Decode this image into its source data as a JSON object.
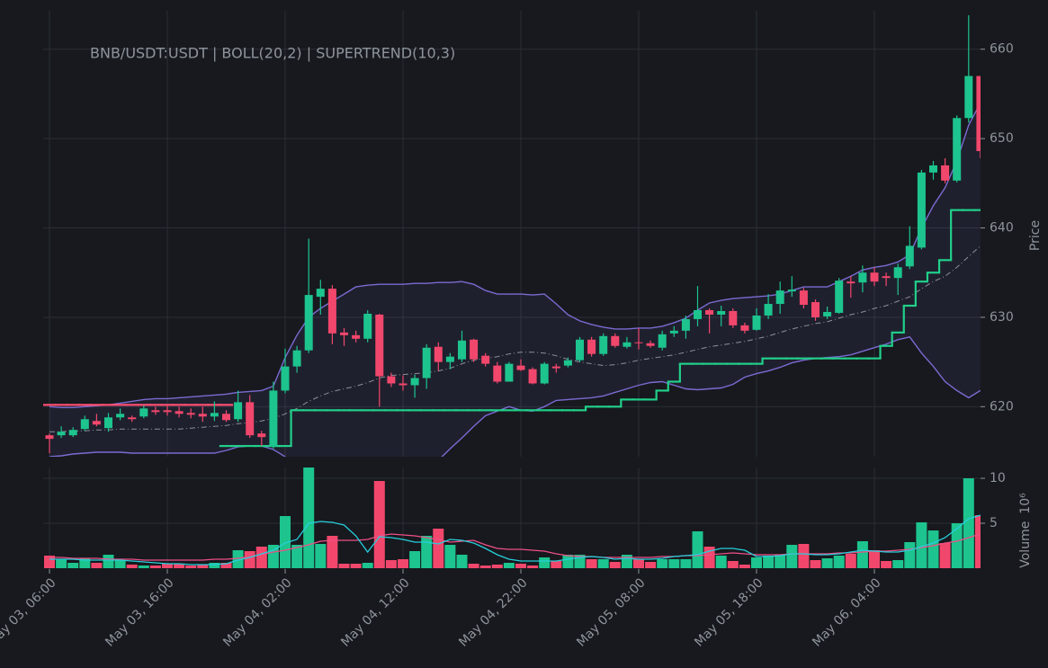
{
  "chart_data": {
    "type": "candlestick",
    "title": "BNB/USDT:USDT | BOLL(20,2) | SUPERTREND(10,3)",
    "y_label": "Price",
    "grid": true,
    "colors": {
      "up": "#1dc48e",
      "down": "#f2476c"
    },
    "categories": [
      "May 03, 06:00",
      null,
      null,
      null,
      null,
      null,
      null,
      null,
      null,
      null,
      "May 03, 16:00",
      null,
      null,
      null,
      null,
      null,
      null,
      null,
      null,
      null,
      "May 04, 02:00",
      null,
      null,
      null,
      null,
      null,
      null,
      null,
      null,
      null,
      "May 04, 12:00",
      null,
      null,
      null,
      null,
      null,
      null,
      null,
      null,
      null,
      "May 04, 22:00",
      null,
      null,
      null,
      null,
      null,
      null,
      null,
      null,
      null,
      "May 05, 08:00",
      null,
      null,
      null,
      null,
      null,
      null,
      null,
      null,
      null,
      "May 05, 18:00",
      null,
      null,
      null,
      null,
      null,
      null,
      null,
      null,
      null,
      "May 06, 04:00",
      null,
      null,
      null,
      null,
      null,
      null,
      null,
      null,
      null
    ],
    "open": [
      616.8,
      616.8,
      616.8,
      617.5,
      618.4,
      617.6,
      618.8,
      618.8,
      618.9,
      619.6,
      619.6,
      619.5,
      619.3,
      619.2,
      618.9,
      619.2,
      618.6,
      620.5,
      617.0,
      615.5,
      621.8,
      624.5,
      626.3,
      632.3,
      633.2,
      628.3,
      628.0,
      627.6,
      630.3,
      623.4,
      622.6,
      622.4,
      623.2,
      626.7,
      625.0,
      625.3,
      627.5,
      625.7,
      624.6,
      622.8,
      624.6,
      624.2,
      622.6,
      624.5,
      624.6,
      625.2,
      627.5,
      625.9,
      627.9,
      626.7,
      627.2,
      627.1,
      626.6,
      628.2,
      628.5,
      629.8,
      630.8,
      630.3,
      630.7,
      629.1,
      628.6,
      630.2,
      631.5,
      632.9,
      633.0,
      631.7,
      630.1,
      630.5,
      634.0,
      633.9,
      635.0,
      634.6,
      634.4,
      635.7,
      637.8,
      646.2,
      647.0,
      645.3,
      652.3,
      657.0
    ],
    "high": [
      617.0,
      617.8,
      617.7,
      619.0,
      619.2,
      619.3,
      619.8,
      619.0,
      620.1,
      620.0,
      620.2,
      620.0,
      619.8,
      620.0,
      620.6,
      619.6,
      621.8,
      621.3,
      617.3,
      622.8,
      626.5,
      626.8,
      638.8,
      634.2,
      633.6,
      628.8,
      628.5,
      630.8,
      630.4,
      623.8,
      623.5,
      623.6,
      627.0,
      627.2,
      626.0,
      628.5,
      627.6,
      626.0,
      625.0,
      625.0,
      625.3,
      624.4,
      625.0,
      624.8,
      625.5,
      627.8,
      627.8,
      628.2,
      628.2,
      627.8,
      628.8,
      627.4,
      628.5,
      629.0,
      630.2,
      633.5,
      631.0,
      631.3,
      631.0,
      629.4,
      631.0,
      632.6,
      634.0,
      634.6,
      633.3,
      632.0,
      631.2,
      634.4,
      634.6,
      635.8,
      635.6,
      635.0,
      636.0,
      640.2,
      646.5,
      647.5,
      647.8,
      652.6,
      663.8,
      657.0
    ],
    "low": [
      614.8,
      616.5,
      616.6,
      617.3,
      617.8,
      617.2,
      618.5,
      618.3,
      618.7,
      619.1,
      619.0,
      618.8,
      618.7,
      618.3,
      618.4,
      618.3,
      618.3,
      616.5,
      615.6,
      615.3,
      621.5,
      623.8,
      626.0,
      630.3,
      627.0,
      626.8,
      627.2,
      627.2,
      620.0,
      622.2,
      621.8,
      621.0,
      622.0,
      624.0,
      624.2,
      625.0,
      625.0,
      624.5,
      622.6,
      622.8,
      624.0,
      622.5,
      622.5,
      623.8,
      624.4,
      625.0,
      625.6,
      625.7,
      626.6,
      626.5,
      626.4,
      626.6,
      626.3,
      627.8,
      627.6,
      629.0,
      628.2,
      629.0,
      628.8,
      628.2,
      628.5,
      629.8,
      630.4,
      632.3,
      631.0,
      629.6,
      629.8,
      630.4,
      632.2,
      632.8,
      633.5,
      633.5,
      632.5,
      635.4,
      637.6,
      645.4,
      645.0,
      645.1,
      651.8,
      647.8
    ],
    "close": [
      616.4,
      617.2,
      617.4,
      618.6,
      618.0,
      618.8,
      619.2,
      618.6,
      619.8,
      619.4,
      619.4,
      619.2,
      619.1,
      618.9,
      619.3,
      618.5,
      620.5,
      616.8,
      616.6,
      621.8,
      624.5,
      626.3,
      632.5,
      633.2,
      628.2,
      628.0,
      627.6,
      630.4,
      623.4,
      622.6,
      622.4,
      623.2,
      626.6,
      625.0,
      625.6,
      627.4,
      625.3,
      624.8,
      622.8,
      624.8,
      624.1,
      622.6,
      624.8,
      624.3,
      625.2,
      627.5,
      625.9,
      627.9,
      626.8,
      627.2,
      627.1,
      626.8,
      628.1,
      628.5,
      629.8,
      630.8,
      630.3,
      630.7,
      629.1,
      628.5,
      630.2,
      631.5,
      633.0,
      633.1,
      631.4,
      630.0,
      630.6,
      634.1,
      633.8,
      635.0,
      634.0,
      634.4,
      635.6,
      638.0,
      646.2,
      647.0,
      645.3,
      652.3,
      657.0,
      648.6
    ],
    "ylim": [
      614.4,
      664.3
    ],
    "yticks": [
      620,
      630,
      640,
      650,
      660
    ],
    "bollinger": {
      "color": "#7a6bd1",
      "middle_color": "#8c8f96",
      "upper": [
        620.0,
        619.9,
        619.9,
        620.0,
        620.1,
        620.2,
        620.4,
        620.6,
        620.8,
        620.9,
        620.9,
        621.0,
        621.1,
        621.2,
        621.3,
        621.4,
        621.6,
        621.7,
        621.8,
        622.3,
        625.5,
        628.0,
        630.0,
        631.0,
        631.8,
        632.6,
        633.4,
        633.6,
        633.7,
        633.7,
        633.7,
        633.8,
        633.8,
        633.9,
        633.9,
        634.0,
        633.7,
        633.0,
        632.6,
        632.6,
        632.6,
        632.5,
        632.6,
        631.5,
        630.3,
        629.6,
        629.2,
        628.9,
        628.7,
        628.7,
        628.8,
        628.8,
        629.0,
        629.4,
        629.9,
        630.8,
        631.6,
        631.9,
        632.1,
        632.2,
        632.3,
        632.4,
        632.6,
        633.0,
        633.4,
        633.4,
        633.4,
        634.0,
        634.6,
        635.3,
        635.6,
        635.8,
        636.2,
        637.0,
        640.0,
        642.5,
        644.5,
        647.5,
        651.5,
        654.0
      ],
      "middle": [
        617.2,
        617.2,
        617.3,
        617.3,
        617.4,
        617.4,
        617.5,
        617.5,
        617.5,
        617.5,
        617.5,
        617.5,
        617.6,
        617.7,
        617.8,
        617.9,
        618.1,
        618.2,
        618.4,
        618.7,
        619.2,
        619.8,
        620.6,
        621.2,
        621.7,
        622.0,
        622.3,
        622.7,
        623.2,
        623.5,
        623.6,
        623.7,
        623.8,
        624.0,
        624.3,
        624.8,
        625.2,
        625.4,
        625.6,
        625.9,
        626.1,
        626.1,
        626.0,
        625.7,
        625.3,
        625.0,
        624.8,
        624.6,
        624.7,
        624.9,
        625.2,
        625.4,
        625.6,
        625.8,
        626.1,
        626.4,
        626.7,
        626.9,
        627.1,
        627.3,
        627.6,
        627.9,
        628.3,
        628.7,
        629.0,
        629.3,
        629.5,
        629.9,
        630.3,
        630.6,
        631.0,
        631.3,
        631.8,
        632.3,
        633.2,
        634.0,
        634.6,
        635.6,
        636.8,
        638.0
      ],
      "lower": [
        614.4,
        614.5,
        614.7,
        614.8,
        614.9,
        614.9,
        614.9,
        614.8,
        614.8,
        614.8,
        614.8,
        614.8,
        614.8,
        614.8,
        614.8,
        615.1,
        615.5,
        615.6,
        615.6,
        615.2,
        614.4,
        612.6,
        611.2,
        610.0,
        609.6,
        609.5,
        609.5,
        609.6,
        609.8,
        610.2,
        610.5,
        611.5,
        612.8,
        614.0,
        615.3,
        616.5,
        617.8,
        619.0,
        619.5,
        620.0,
        619.6,
        619.5,
        620.0,
        620.7,
        620.8,
        620.9,
        621.0,
        621.2,
        621.6,
        622.0,
        622.4,
        622.7,
        622.8,
        622.4,
        622.0,
        621.9,
        622.0,
        622.1,
        622.5,
        623.3,
        623.7,
        624.0,
        624.4,
        624.9,
        625.2,
        625.4,
        625.5,
        625.6,
        625.8,
        626.2,
        626.6,
        627.0,
        627.5,
        627.8,
        626.0,
        624.5,
        622.8,
        621.8,
        621.0,
        621.8
      ]
    },
    "supertrend": {
      "up_color": "#21d08a",
      "down_color": "#ff4f72",
      "up": [
        null,
        null,
        null,
        null,
        null,
        null,
        null,
        null,
        null,
        null,
        null,
        null,
        null,
        null,
        null,
        615.6,
        615.6,
        615.6,
        615.6,
        615.6,
        615.6,
        619.6,
        619.6,
        619.6,
        619.6,
        619.6,
        619.6,
        619.6,
        619.6,
        619.6,
        619.6,
        619.6,
        619.6,
        619.6,
        619.6,
        619.6,
        619.6,
        619.6,
        619.6,
        619.6,
        619.6,
        619.6,
        619.6,
        619.6,
        619.6,
        619.6,
        620.0,
        620.0,
        620.0,
        620.8,
        620.8,
        620.8,
        621.8,
        622.8,
        624.8,
        624.8,
        624.8,
        624.8,
        624.8,
        624.8,
        624.8,
        625.4,
        625.4,
        625.4,
        625.4,
        625.4,
        625.4,
        625.4,
        625.4,
        625.4,
        625.4,
        626.8,
        628.3,
        631.3,
        634.0,
        635.0,
        636.4,
        642.0,
        642.0,
        642.0
      ],
      "down": [
        620.2,
        620.2,
        620.2,
        620.2,
        620.2,
        620.2,
        620.2,
        620.2,
        620.2,
        620.2,
        620.2,
        620.2,
        620.2,
        620.2,
        620.2,
        620.2,
        null,
        null,
        null,
        null,
        null,
        null,
        null,
        null,
        null,
        null,
        null,
        null,
        null,
        null,
        null,
        null,
        null,
        null,
        null,
        null,
        null,
        null,
        null,
        null,
        null,
        null,
        null,
        null,
        null,
        null,
        null,
        null,
        null,
        null,
        null,
        null,
        null,
        null,
        null,
        null,
        null,
        null,
        null,
        null,
        null,
        null,
        null,
        null,
        null,
        null,
        null,
        null,
        null,
        null,
        null,
        null,
        null,
        null,
        null,
        null,
        null,
        null,
        null,
        null
      ]
    },
    "volume": {
      "y_label": "Volume",
      "offset_label": "10⁶",
      "ylim": [
        0,
        11.2
      ],
      "yticks": [
        5,
        10
      ],
      "fast_color": "#27cfdc",
      "slow_color": "#ee4f86",
      "values": [
        1.4,
        1.0,
        0.6,
        1.1,
        0.6,
        1.5,
        0.9,
        0.4,
        0.3,
        0.3,
        0.5,
        0.5,
        0.3,
        0.4,
        0.6,
        0.6,
        2.0,
        1.9,
        2.4,
        2.6,
        5.8,
        2.6,
        11.2,
        2.7,
        3.6,
        0.5,
        0.5,
        0.6,
        9.7,
        0.9,
        1.0,
        1.9,
        3.6,
        4.4,
        2.6,
        1.5,
        0.5,
        0.3,
        0.4,
        0.6,
        0.5,
        0.3,
        1.2,
        0.8,
        1.5,
        1.5,
        1.0,
        1.0,
        0.7,
        1.5,
        1.0,
        0.7,
        1.0,
        1.0,
        1.0,
        4.1,
        2.4,
        1.4,
        0.8,
        0.4,
        1.2,
        1.4,
        1.5,
        2.6,
        2.7,
        0.9,
        1.1,
        1.4,
        1.6,
        3.0,
        2.0,
        0.8,
        0.9,
        2.9,
        5.1,
        4.2,
        2.8,
        5.0,
        10.0,
        5.9
      ],
      "ma_fast": [
        1.0,
        1.0,
        1.0,
        0.9,
        0.9,
        0.9,
        0.9,
        0.8,
        0.7,
        0.6,
        0.5,
        0.5,
        0.4,
        0.4,
        0.4,
        0.5,
        0.9,
        1.2,
        1.6,
        2.0,
        2.8,
        3.2,
        5.0,
        5.2,
        5.1,
        4.8,
        3.6,
        1.8,
        3.5,
        3.4,
        3.2,
        2.9,
        2.9,
        2.7,
        3.2,
        3.1,
        2.8,
        2.2,
        1.5,
        1.0,
        0.8,
        0.8,
        0.8,
        0.8,
        1.0,
        1.2,
        1.3,
        1.2,
        1.0,
        1.1,
        1.0,
        1.0,
        1.1,
        1.3,
        1.4,
        1.5,
        1.9,
        2.2,
        2.2,
        2.0,
        1.3,
        1.3,
        1.4,
        1.6,
        1.6,
        1.5,
        1.5,
        1.6,
        1.8,
        2.0,
        1.9,
        1.8,
        1.8,
        2.0,
        2.4,
        2.8,
        3.4,
        4.4,
        5.5,
        5.9
      ],
      "ma_slow": [
        1.2,
        1.2,
        1.1,
        1.1,
        1.1,
        1.0,
        1.0,
        1.0,
        0.9,
        0.9,
        0.9,
        0.9,
        0.9,
        0.9,
        1.0,
        1.0,
        1.1,
        1.3,
        1.5,
        1.8,
        2.0,
        2.3,
        2.6,
        3.0,
        3.1,
        3.1,
        3.1,
        3.2,
        3.6,
        3.8,
        3.7,
        3.6,
        3.4,
        3.2,
        2.9,
        3.0,
        3.1,
        2.6,
        2.2,
        2.1,
        2.1,
        2.0,
        1.9,
        1.6,
        1.4,
        1.3,
        1.3,
        1.2,
        1.2,
        1.2,
        1.2,
        1.2,
        1.3,
        1.3,
        1.4,
        1.4,
        1.5,
        1.6,
        1.7,
        1.6,
        1.5,
        1.5,
        1.5,
        1.6,
        1.6,
        1.6,
        1.6,
        1.7,
        1.7,
        1.8,
        1.9,
        1.9,
        2.0,
        2.1,
        2.3,
        2.5,
        2.8,
        3.0,
        3.4,
        3.8
      ]
    }
  }
}
